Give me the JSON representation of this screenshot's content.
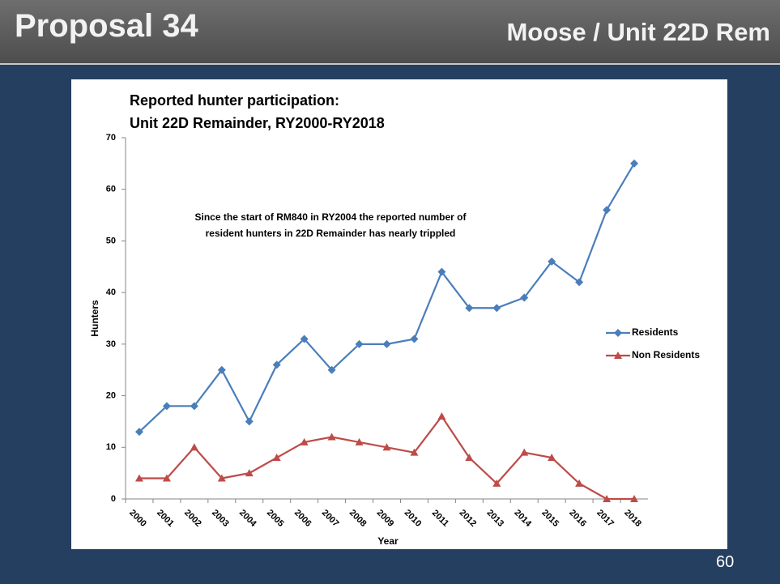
{
  "slide": {
    "title": "Proposal 34",
    "heading_right": "Moose / Unit 22D Rem",
    "page_number": "60"
  },
  "chart_data": {
    "type": "line",
    "title": "Reported hunter participation:",
    "subtitle": "Unit 22D Remainder, RY2000-RY2018",
    "annotation": [
      "Since the start of RM840 in RY2004 the reported  number of",
      "resident hunters in 22D Remainder has nearly trippled"
    ],
    "x_label": "Year",
    "y_label": "Hunters",
    "categories": [
      "2000",
      "2001",
      "2002",
      "2003",
      "2004",
      "2005",
      "2006",
      "2007",
      "2008",
      "2009",
      "2010",
      "2011",
      "2012",
      "2013",
      "2014",
      "2015",
      "2016",
      "2017",
      "2018"
    ],
    "series": [
      {
        "name": "Residents",
        "color": "#4a7ebb",
        "marker": "diamond",
        "values": [
          13,
          18,
          18,
          25,
          15,
          26,
          31,
          25,
          30,
          30,
          31,
          44,
          37,
          37,
          39,
          46,
          42,
          56,
          65
        ]
      },
      {
        "name": "Non Residents",
        "color": "#be4b48",
        "marker": "triangle",
        "values": [
          4,
          4,
          10,
          4,
          5,
          8,
          11,
          12,
          11,
          10,
          9,
          16,
          8,
          3,
          9,
          8,
          3,
          0,
          0
        ]
      }
    ],
    "ylim": [
      0,
      70
    ],
    "yticks": [
      0,
      10,
      20,
      30,
      40,
      50,
      60,
      70
    ],
    "grid": false,
    "legend": "right"
  }
}
